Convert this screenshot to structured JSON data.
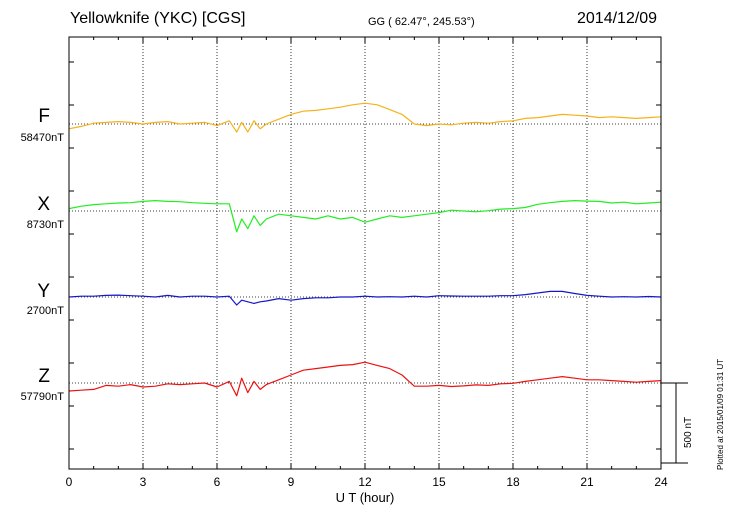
{
  "header": {
    "station": "Yellowknife (YKC)  [CGS]",
    "coords": "GG ( 62.47°, 245.53°)",
    "date": "2014/12/09"
  },
  "plotted_note": "Plotted at 2015/01/09 01:31  UT",
  "scale_bar": {
    "label": "500 nT",
    "value_nT": 500
  },
  "colors": {
    "F": "#f5b21a",
    "X": "#22ee22",
    "Y": "#1616cc",
    "Z": "#ee1111"
  },
  "chart_data": {
    "type": "line",
    "title": "Yellowknife (YKC)  [CGS]",
    "xlabel": "U T (hour)",
    "ylabel": "",
    "xlim": [
      0,
      24
    ],
    "x_ticks": [
      "0",
      "3",
      "6",
      "9",
      "12",
      "15",
      "18",
      "21",
      "24"
    ],
    "grid": true,
    "units": "nT",
    "x": [
      0,
      0.5,
      1,
      1.5,
      2,
      2.5,
      3,
      3.5,
      4,
      4.5,
      5,
      5.5,
      6,
      6.5,
      6.8,
      7,
      7.25,
      7.5,
      7.75,
      8,
      8.5,
      9,
      9.5,
      10,
      10.5,
      11,
      11.5,
      12,
      12.5,
      13,
      13.5,
      14,
      14.5,
      15,
      15.5,
      16,
      16.5,
      17,
      17.5,
      18,
      18.5,
      19,
      19.5,
      20,
      20.5,
      21,
      21.5,
      22,
      22.5,
      23,
      23.5,
      24
    ],
    "series": [
      {
        "name": "F",
        "label": "F",
        "baseline": "58470nT",
        "values": [
          58440,
          58455,
          58475,
          58480,
          58485,
          58480,
          58470,
          58480,
          58485,
          58470,
          58475,
          58480,
          58460,
          58490,
          58420,
          58480,
          58420,
          58490,
          58440,
          58470,
          58500,
          58530,
          58550,
          58555,
          58565,
          58575,
          58590,
          58600,
          58590,
          58560,
          58530,
          58470,
          58460,
          58470,
          58465,
          58475,
          58480,
          58475,
          58485,
          58490,
          58505,
          58510,
          58520,
          58530,
          58525,
          58520,
          58510,
          58515,
          58510,
          58505,
          58510,
          58515
        ]
      },
      {
        "name": "X",
        "label": "X",
        "baseline": "8730nT",
        "values": [
          8745,
          8760,
          8770,
          8775,
          8780,
          8782,
          8790,
          8795,
          8790,
          8788,
          8782,
          8778,
          8775,
          8775,
          8600,
          8680,
          8620,
          8700,
          8640,
          8680,
          8710,
          8700,
          8690,
          8680,
          8700,
          8680,
          8690,
          8660,
          8680,
          8700,
          8690,
          8700,
          8710,
          8720,
          8735,
          8730,
          8725,
          8732,
          8742,
          8745,
          8752,
          8772,
          8782,
          8790,
          8795,
          8792,
          8790,
          8780,
          8785,
          8775,
          8780,
          8785
        ]
      },
      {
        "name": "Y",
        "label": "Y",
        "baseline": "2700nT",
        "values": [
          2700,
          2705,
          2705,
          2710,
          2712,
          2708,
          2705,
          2700,
          2710,
          2700,
          2705,
          2705,
          2700,
          2705,
          2650,
          2680,
          2670,
          2660,
          2670,
          2675,
          2690,
          2680,
          2690,
          2695,
          2695,
          2700,
          2700,
          2705,
          2700,
          2702,
          2700,
          2705,
          2700,
          2708,
          2706,
          2705,
          2705,
          2705,
          2708,
          2708,
          2715,
          2725,
          2735,
          2735,
          2722,
          2710,
          2705,
          2700,
          2702,
          2700,
          2703,
          2700
        ]
      },
      {
        "name": "Z",
        "label": "Z",
        "baseline": "57790nT",
        "values": [
          57740,
          57745,
          57750,
          57775,
          57770,
          57780,
          57765,
          57770,
          57785,
          57780,
          57785,
          57790,
          57765,
          57800,
          57710,
          57820,
          57730,
          57800,
          57750,
          57780,
          57810,
          57840,
          57870,
          57880,
          57890,
          57900,
          57905,
          57920,
          57900,
          57880,
          57840,
          57770,
          57770,
          57775,
          57768,
          57772,
          57778,
          57775,
          57785,
          57788,
          57800,
          57810,
          57820,
          57830,
          57820,
          57810,
          57810,
          57805,
          57800,
          57795,
          57800,
          57805
        ]
      }
    ]
  }
}
